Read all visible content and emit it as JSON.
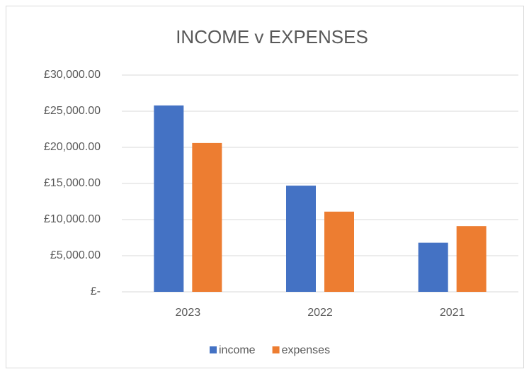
{
  "chart_data": {
    "type": "bar",
    "title": "INCOME v EXPENSES",
    "categories": [
      "2023",
      "2022",
      "2021"
    ],
    "series": [
      {
        "name": "income",
        "color": "#4472c4",
        "values": [
          25800,
          14700,
          6800
        ]
      },
      {
        "name": "expenses",
        "color": "#ed7d31",
        "values": [
          20600,
          11100,
          9100
        ]
      }
    ],
    "ylim": [
      0,
      30000
    ],
    "yticks": [
      {
        "value": 0,
        "label": "£-"
      },
      {
        "value": 5000,
        "label": "£5,000.00"
      },
      {
        "value": 10000,
        "label": "£10,000.00"
      },
      {
        "value": 15000,
        "label": "£15,000.00"
      },
      {
        "value": 20000,
        "label": "£20,000.00"
      },
      {
        "value": 25000,
        "label": "£25,000.00"
      },
      {
        "value": 30000,
        "label": "£30,000.00"
      }
    ],
    "grid": true,
    "legend": "bottom"
  }
}
